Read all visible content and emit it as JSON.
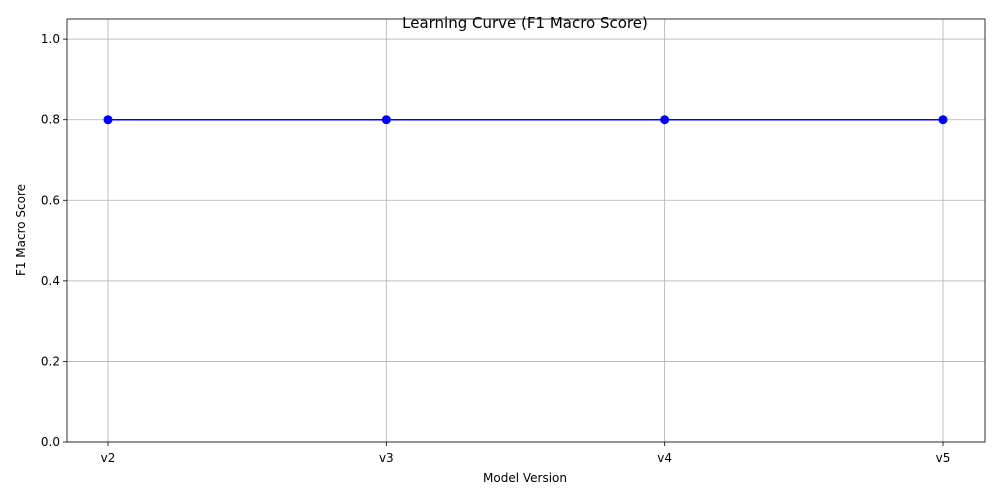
{
  "chart_data": {
    "type": "line",
    "title": "Learning Curve (F1 Macro Score)",
    "xlabel": "Model Version",
    "ylabel": "F1 Macro Score",
    "categories": [
      "v2",
      "v3",
      "v4",
      "v5"
    ],
    "series": [
      {
        "values": [
          0.8,
          0.8,
          0.8,
          0.8
        ],
        "color": "#0000ff",
        "marker": "circle"
      }
    ],
    "ylim": [
      0,
      1.05
    ],
    "yticks": [
      0.0,
      0.2,
      0.4,
      0.6,
      0.8,
      1.0
    ],
    "ytick_labels": [
      "0.0",
      "0.2",
      "0.4",
      "0.6",
      "0.8",
      "1.0"
    ],
    "grid": true
  }
}
